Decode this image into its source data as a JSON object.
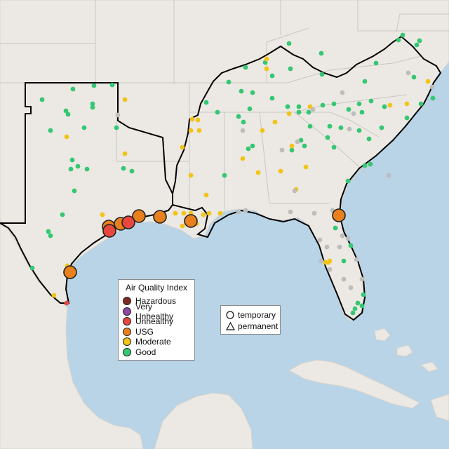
{
  "map": {
    "colors": {
      "water": "#b9d4e6",
      "land": "#ece9e4",
      "land_shadow": "#e2ded8",
      "border": "#c9c6c2",
      "focus_outline": "#000000"
    },
    "aqi_categories": [
      {
        "key": "hazardous",
        "label": "Hazardous",
        "color": "#7e2b24"
      },
      {
        "key": "very_unhealthy",
        "label": "Very Unhealthy",
        "color": "#8f4aa3"
      },
      {
        "key": "unhealthy",
        "label": "Unhealthy",
        "color": "#e8473e"
      },
      {
        "key": "usg",
        "label": "USG",
        "color": "#e8801e"
      },
      {
        "key": "moderate",
        "label": "Moderate",
        "color": "#f2c418"
      },
      {
        "key": "good",
        "label": "Good",
        "color": "#35c772"
      },
      {
        "key": "no_data",
        "label": "",
        "color": "#bdbdbd"
      }
    ]
  },
  "legend": {
    "title": "Air Quality Index",
    "items": [
      {
        "label": "Hazardous",
        "color": "#7e2b24"
      },
      {
        "label": "Very Unhealthy",
        "color": "#8f4aa3"
      },
      {
        "label": "Unhealthy",
        "color": "#e8473e"
      },
      {
        "label": "USG",
        "color": "#e8801e"
      },
      {
        "label": "Moderate",
        "color": "#f2c418"
      },
      {
        "label": "Good",
        "color": "#35c772"
      }
    ]
  },
  "monitor_types": {
    "temporary": {
      "label": "temporary",
      "icon": "circle-icon"
    },
    "permanent": {
      "label": "permanent",
      "icon": "triangle-icon"
    }
  }
}
